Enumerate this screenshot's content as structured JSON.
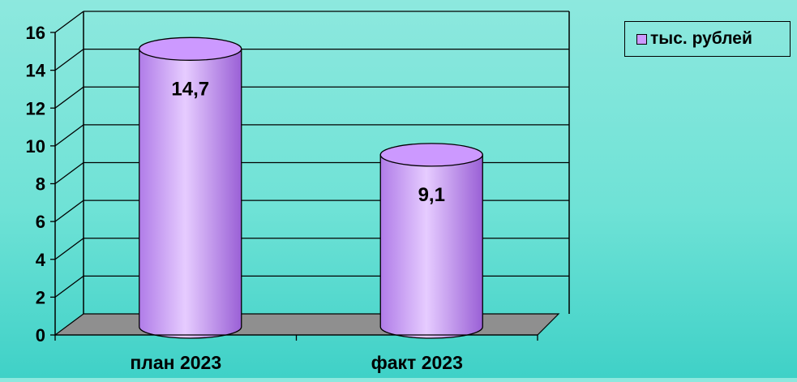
{
  "chart_data": {
    "type": "bar",
    "categories": [
      "план 2023",
      "факт 2023"
    ],
    "series": [
      {
        "name": "тыс. рублей",
        "values": [
          14.7,
          9.1
        ]
      }
    ],
    "data_labels": [
      "14,7",
      "9,1"
    ],
    "y_ticks": [
      "0",
      "2",
      "4",
      "6",
      "8",
      "10",
      "12",
      "14",
      "16"
    ],
    "ylim": [
      0,
      16
    ],
    "title": "",
    "xlabel": "",
    "ylabel": "",
    "grid": true,
    "legend_position": "top-right",
    "bar_shape": "cylinder",
    "colors": {
      "bar_face": "#cc99ff",
      "bar_highlight": "#e6ccff",
      "bar_shadow": "#9a60d6",
      "floor": "#8f8f8f",
      "grid": "#000000"
    }
  }
}
